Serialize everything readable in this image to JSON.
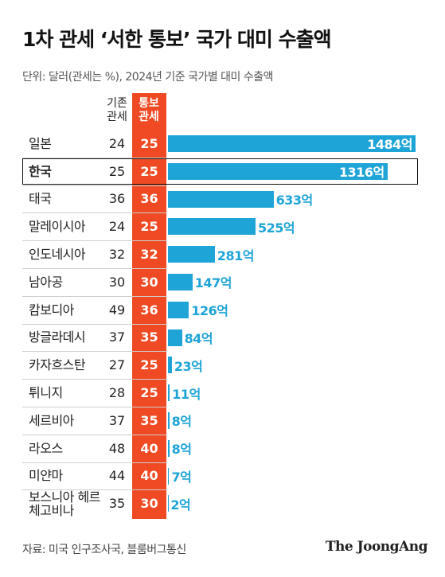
{
  "chart_data": {
    "type": "bar",
    "title": "1차 관세 ‘서한 통보’ 국가 대미 수출액",
    "subtitle": "단위: 달러(관세는 %), 2024년 기준 국가별 대미 수출액",
    "columns": [
      "기존 관세",
      "통보 관세"
    ],
    "categories": [
      "일본",
      "한국",
      "태국",
      "말레이시아",
      "인도네시아",
      "남아공",
      "캄보디아",
      "방글라데시",
      "카자흐스탄",
      "튀니지",
      "세르비아",
      "라오스",
      "미얀마",
      "보스니아 헤르체고비나"
    ],
    "existing_tariff": [
      24,
      25,
      36,
      24,
      32,
      30,
      49,
      37,
      27,
      28,
      37,
      48,
      44,
      35
    ],
    "notified_tariff": [
      25,
      25,
      36,
      25,
      32,
      30,
      36,
      35,
      25,
      25,
      35,
      40,
      40,
      30
    ],
    "values": [
      1484,
      1316,
      633,
      525,
      281,
      147,
      126,
      84,
      23,
      11,
      8,
      8,
      7,
      2
    ],
    "value_labels": [
      "1484억",
      "1316억",
      "633억",
      "525억",
      "281억",
      "147억",
      "126억",
      "84억",
      "23억",
      "11억",
      "8억",
      "8억",
      "7억",
      "2억"
    ],
    "color": "#1ea4d6",
    "tariff_color": "#ef4a23",
    "highlight": "한국",
    "source": "자료: 미국 인구조사국, 블룸버그통신",
    "logo": "The JoongAng"
  }
}
